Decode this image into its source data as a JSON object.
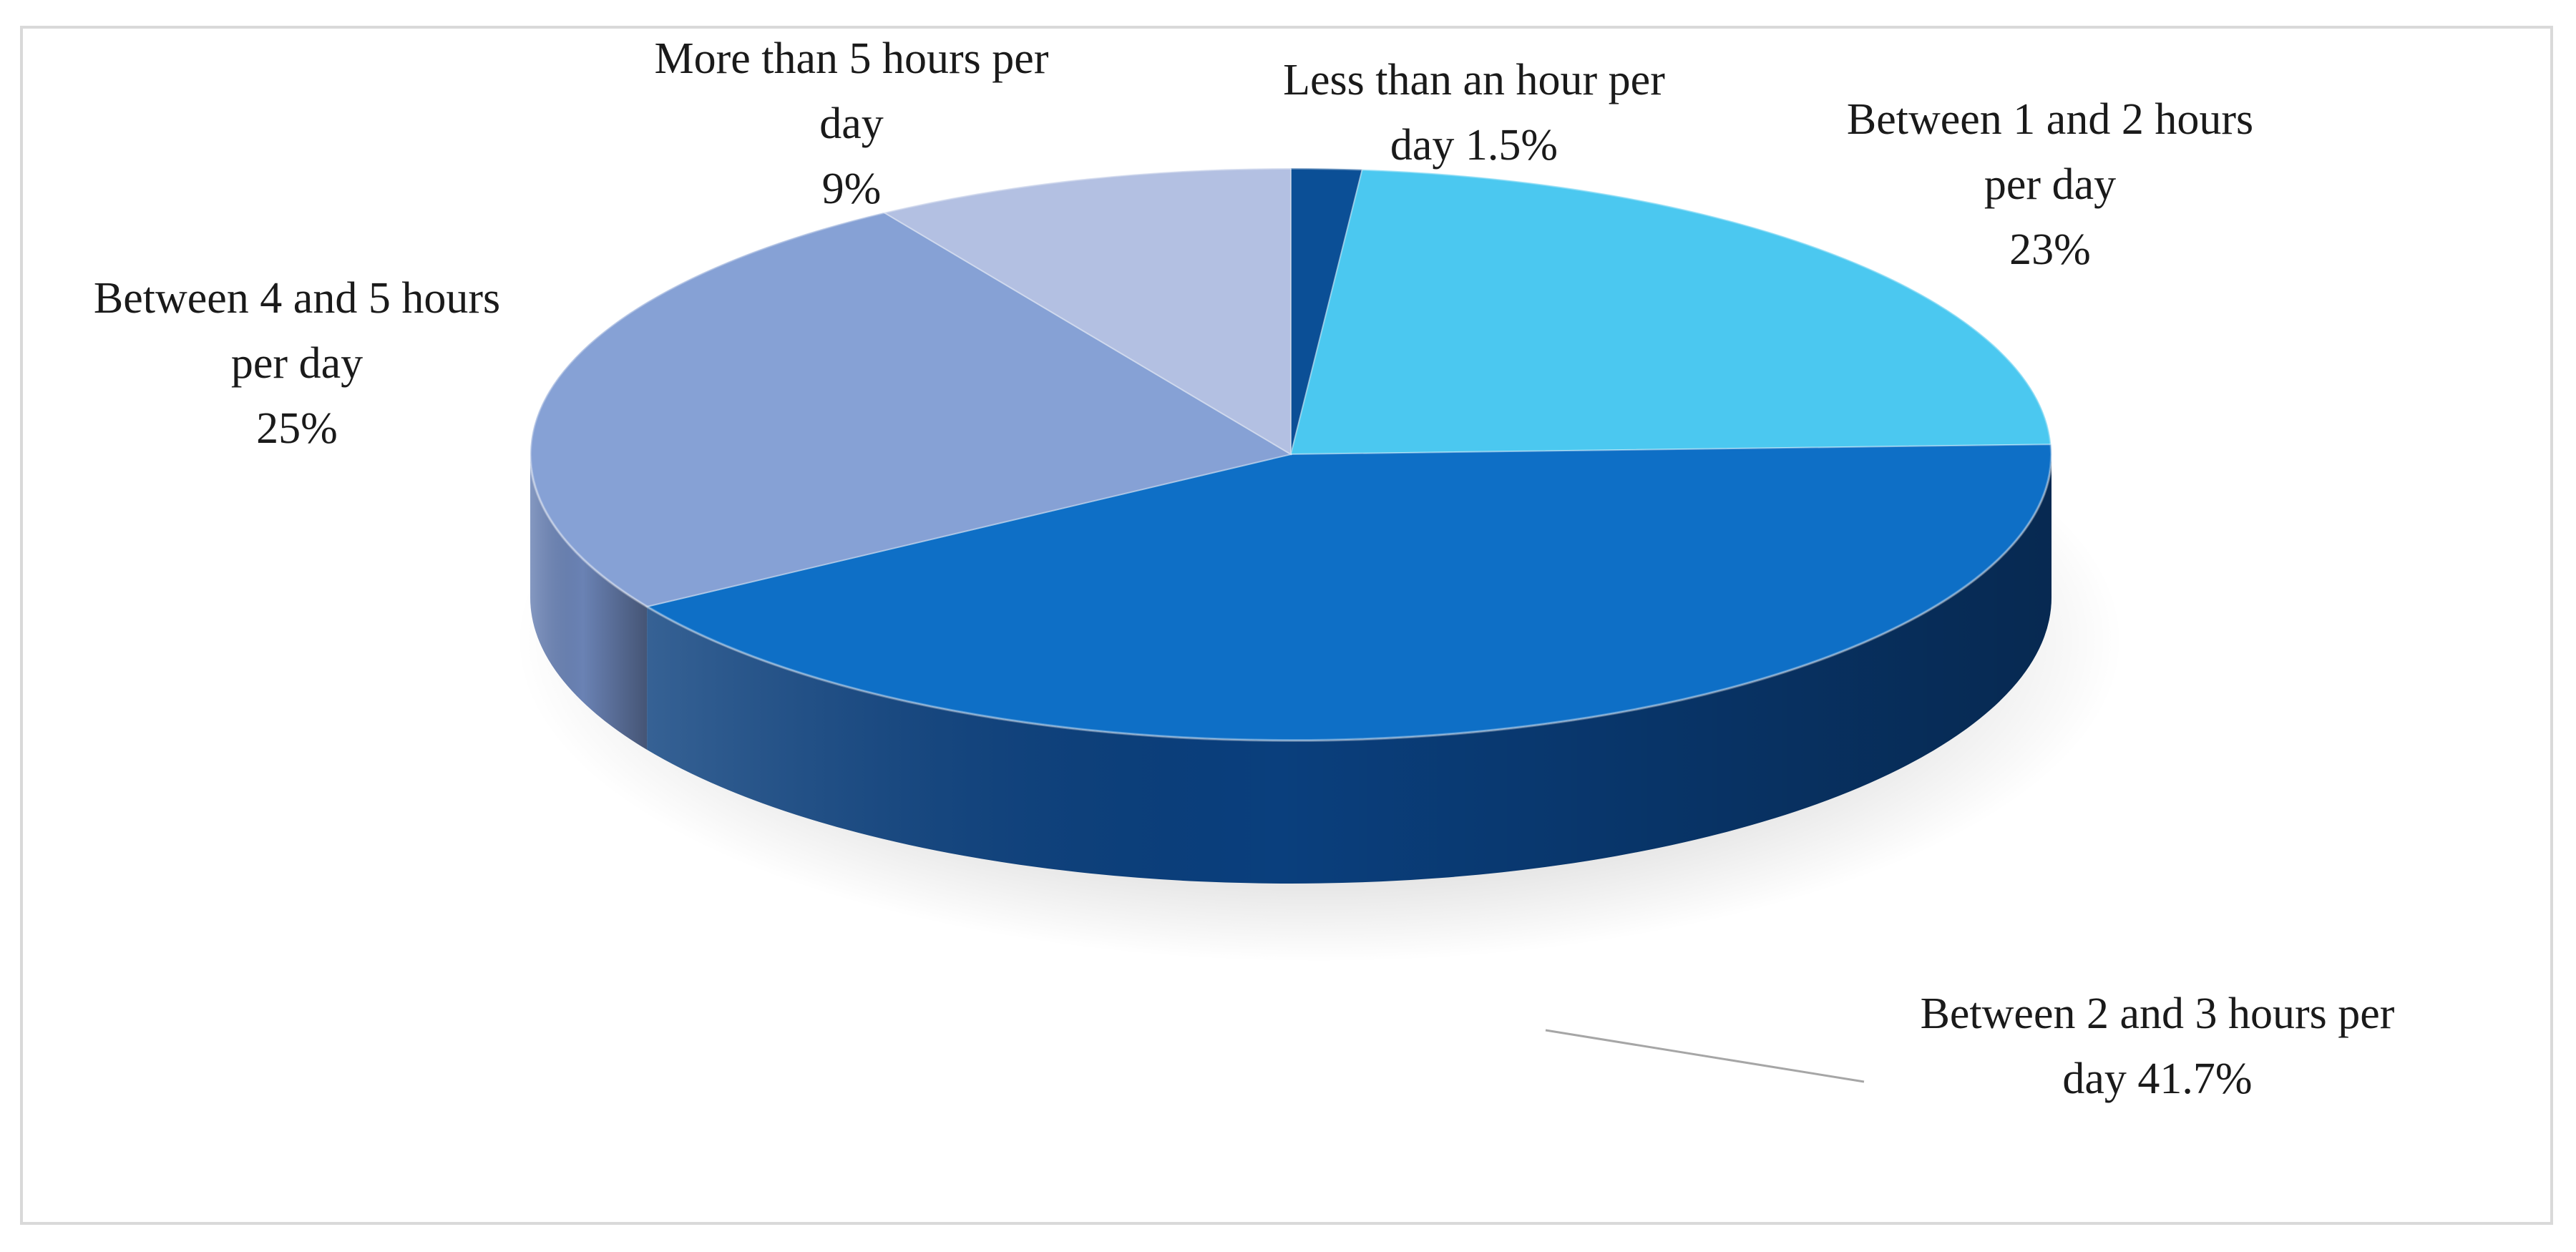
{
  "chart_data": {
    "type": "pie",
    "style": "3d",
    "categories": [
      "Less than an hour per day",
      "Between 1 and 2 hours per day",
      "Between 2 and 3 hours per day",
      "Between 4 and 5 hours per day",
      "More than 5 hours per day"
    ],
    "values": [
      1.5,
      23,
      41.7,
      25,
      9
    ],
    "colors": [
      "#0b4f96",
      "#4bc8f0",
      "#0e6fc6",
      "#86a1d5",
      "#b3c0e2"
    ],
    "side_colors": [
      "#083a70",
      "#2f9dc2",
      "#0a3f7d",
      "#6a82b4",
      "#95a3c9"
    ],
    "labels": [
      {
        "lines": [
          "Less than an hour per",
          "day 1.5%"
        ]
      },
      {
        "lines": [
          "Between 1 and 2 hours",
          "per day",
          "23%"
        ]
      },
      {
        "lines": [
          "Between 2 and 3 hours per",
          "day 41.7%"
        ]
      },
      {
        "lines": [
          "Between 4 and 5 hours",
          "per day",
          "25%"
        ]
      },
      {
        "lines": [
          "More than 5 hours per",
          "day",
          "9%"
        ]
      }
    ],
    "legend": "none"
  }
}
